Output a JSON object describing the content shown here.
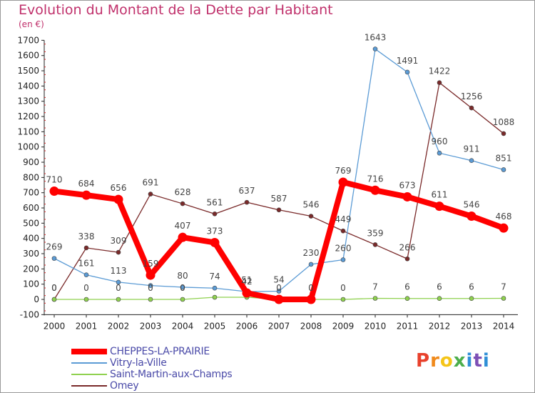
{
  "title": "Evolution du Montant de la Dette par Habitant",
  "unit": "(en €)",
  "logo": {
    "text": "Proxiti",
    "colors": [
      "#e8412c",
      "#f08a1c",
      "#f5c518",
      "#4cae4c",
      "#2f8fd6",
      "#7d4fb5",
      "#2f8fd6"
    ]
  },
  "chart_data": {
    "type": "line",
    "x": [
      2000,
      2001,
      2002,
      2003,
      2004,
      2005,
      2006,
      2007,
      2008,
      2009,
      2010,
      2011,
      2012,
      2013,
      2014
    ],
    "ylim": [
      -100,
      1700
    ],
    "yticks": [
      -100,
      0,
      100,
      200,
      300,
      400,
      500,
      600,
      700,
      800,
      900,
      1000,
      1100,
      1200,
      1300,
      1400,
      1500,
      1600,
      1700
    ],
    "grid": false,
    "legend_position": "bottom-left",
    "series": [
      {
        "name": "CHEPPES-LA-PRAIRIE",
        "color": "#ff0000",
        "values": [
          710,
          684,
          656,
          159,
          407,
          373,
          42,
          0,
          0,
          769,
          716,
          673,
          611,
          546,
          468
        ],
        "labels": [
          "710",
          "684",
          "656",
          "159",
          "407",
          "373",
          "42",
          "0",
          "0",
          "769",
          "716",
          "673",
          "611",
          "546",
          "468"
        ]
      },
      {
        "name": "Vitry-la-Ville",
        "color": "#5b9bd5",
        "values": [
          269,
          161,
          113,
          91,
          80,
          74,
          51,
          54,
          230,
          260,
          1643,
          1491,
          960,
          911,
          851
        ],
        "labels": [
          "269",
          "161",
          "113",
          "",
          "80",
          "74",
          "51",
          "54",
          "230",
          "260",
          "1643",
          "1491",
          "960",
          "911",
          "851"
        ]
      },
      {
        "name": "Saint-Martin-aux-Champs",
        "color": "#8fd14f",
        "values": [
          0,
          0,
          0,
          0,
          0,
          14,
          14,
          0,
          0,
          0,
          7,
          6,
          6,
          6,
          7
        ],
        "labels": [
          "0",
          "0",
          "0",
          "0",
          "0",
          "",
          "",
          "",
          "",
          "0",
          "7",
          "6",
          "6",
          "6",
          "7"
        ]
      },
      {
        "name": "Omey",
        "color": "#7a2a2a",
        "values": [
          0,
          338,
          309,
          691,
          628,
          561,
          637,
          587,
          546,
          449,
          359,
          266,
          1422,
          1256,
          1088
        ],
        "labels": [
          "0",
          "338",
          "309",
          "691",
          "628",
          "561",
          "637",
          "587",
          "546",
          "449",
          "359",
          "266",
          "1422",
          "1256",
          "1088"
        ]
      }
    ]
  }
}
